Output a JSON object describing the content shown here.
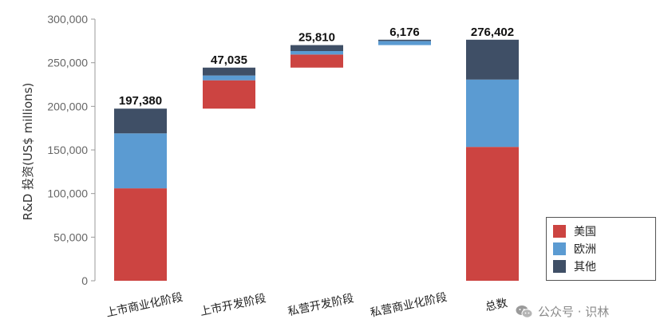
{
  "chart_data": {
    "type": "bar",
    "subtype": "stacked-waterfall",
    "title": "",
    "xlabel": "",
    "ylabel": "R&D 投资(US$ millions)",
    "ylim": [
      0,
      300000
    ],
    "yticks": [
      0,
      50000,
      100000,
      150000,
      200000,
      250000,
      300000
    ],
    "ytick_labels": [
      "0",
      "50,000",
      "100,000",
      "150,000",
      "200,000",
      "250,000",
      "300,000"
    ],
    "grid": false,
    "legend_position": "bottom-right",
    "categories": [
      "上市商业化阶段",
      "上市开发阶段",
      "私营开发阶段",
      "私营商业化阶段",
      "总数"
    ],
    "base": [
      0,
      197380,
      244415,
      270225,
      0
    ],
    "totals": [
      197380,
      47035,
      25810,
      6176,
      276402
    ],
    "total_labels": [
      "197,380",
      "47,035",
      "25,810",
      "6,176",
      "276,402"
    ],
    "series": [
      {
        "name": "美国",
        "color": "#cc4441",
        "values": [
          106000,
          32500,
          15000,
          0,
          153500
        ]
      },
      {
        "name": "欧洲",
        "color": "#5b9bd2",
        "values": [
          63000,
          5500,
          4000,
          4700,
          77200
        ]
      },
      {
        "name": "其他",
        "color": "#3f4f66",
        "values": [
          28380,
          9035,
          6810,
          1476,
          45702
        ]
      }
    ]
  },
  "watermark": {
    "text": "公众号 · 识林",
    "icon": "wechat-icon"
  }
}
